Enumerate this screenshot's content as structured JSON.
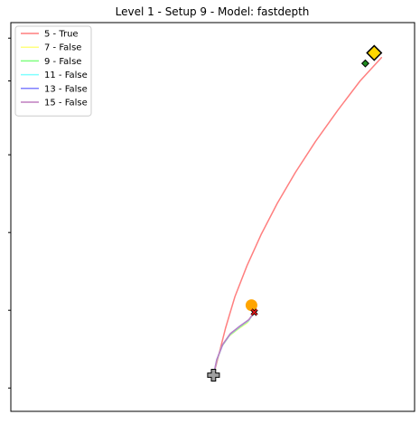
{
  "chart_data": {
    "type": "line",
    "title": "Level 1 - Setup 9 - Model: fastdepth",
    "xlabel": "",
    "ylabel": "",
    "grid": false,
    "legend_position": "upper-left",
    "xlim": [
      0,
      100
    ],
    "ylim": [
      0,
      100
    ],
    "series": [
      {
        "name": "5 - True",
        "color": "#ff7f7f",
        "x": [
          50.2,
          51.5,
          53.2,
          55.5,
          58.5,
          62,
          66,
          70.5,
          75.5,
          81,
          86.5,
          91.8
        ],
        "y": [
          9.3,
          14.5,
          21.5,
          29.5,
          37.5,
          45.5,
          53.5,
          61.5,
          69.5,
          77.5,
          85.0,
          91.0
        ]
      },
      {
        "name": "7 - False",
        "color": "#ffff7f",
        "x": [
          50.2,
          51.0,
          52.2,
          54.0,
          56.2,
          58.6,
          60.3
        ],
        "y": [
          9.3,
          13.0,
          16.6,
          19.3,
          21.1,
          22.8,
          25.5
        ]
      },
      {
        "name": "9 - False",
        "color": "#7fff7f",
        "x": [
          50.2,
          51.0,
          52.3,
          54.2,
          56.5,
          58.8,
          60.3
        ],
        "y": [
          9.3,
          13.1,
          16.8,
          19.6,
          21.5,
          23.2,
          25.5
        ]
      },
      {
        "name": "11 - False",
        "color": "#7fffff",
        "x": [
          50.2,
          51.0,
          52.4,
          54.3,
          56.6,
          58.9,
          60.3
        ],
        "y": [
          9.3,
          13.2,
          17.0,
          19.8,
          21.7,
          23.4,
          25.5
        ]
      },
      {
        "name": "13 - False",
        "color": "#7f7fff",
        "x": [
          50.2,
          51.0,
          52.5,
          54.4,
          56.7,
          59.0,
          60.3
        ],
        "y": [
          9.3,
          13.3,
          17.2,
          20.0,
          21.9,
          23.6,
          25.5
        ]
      },
      {
        "name": "15 - False",
        "color": "#bf7fbf",
        "x": [
          50.2,
          51.0,
          52.4,
          54.3,
          56.6,
          58.9,
          60.3
        ],
        "y": [
          9.3,
          13.2,
          17.1,
          19.9,
          21.8,
          23.5,
          25.5
        ]
      }
    ],
    "markers": [
      {
        "name": "start",
        "shape": "plus",
        "color": "#a0a0a0",
        "x": 50.2,
        "y": 9.3
      },
      {
        "name": "goal",
        "shape": "diamond",
        "color": "#ffd700",
        "x": 90.0,
        "y": 92.2
      },
      {
        "name": "goal-reached",
        "shape": "diamond",
        "color": "#1f8b1f",
        "x": 87.8,
        "y": 89.5
      },
      {
        "name": "obstacle",
        "shape": "circle",
        "color": "#ffa500",
        "x": 59.6,
        "y": 27.3
      },
      {
        "name": "failure",
        "shape": "x",
        "color": "#e41a1c",
        "x": 60.3,
        "y": 25.5
      }
    ]
  }
}
